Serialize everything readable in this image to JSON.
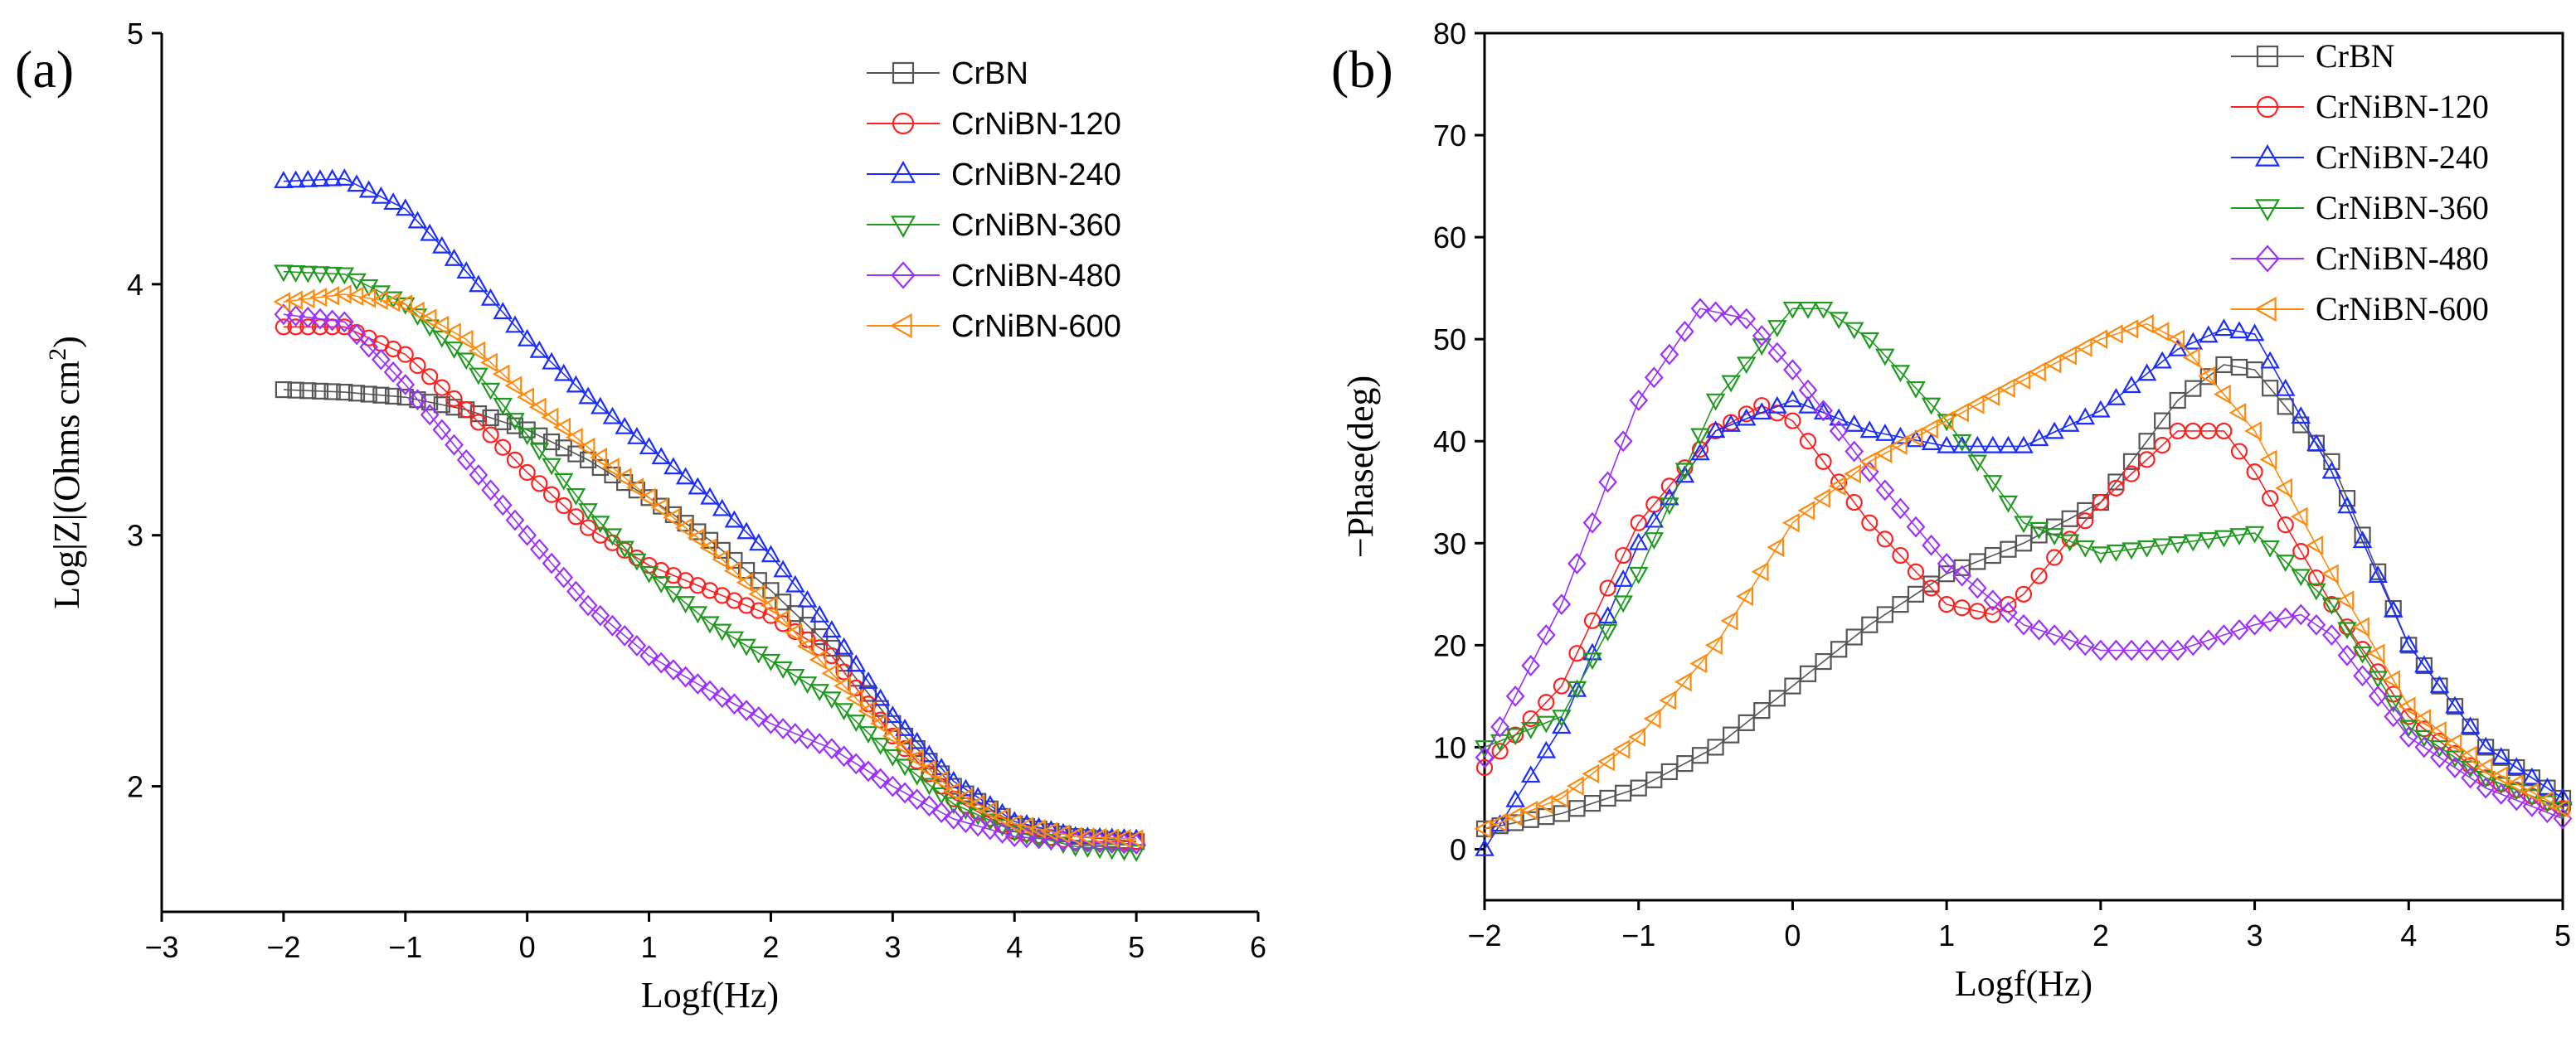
{
  "chart_data": [
    {
      "type": "scatter",
      "panel_label": "(a)",
      "xlabel": "Logf(Hz)",
      "ylabel": "Log|Z|(Ohms cm",
      "ylabel_sup": "2",
      "ylabel_close": ")",
      "xlim": [
        -3,
        6
      ],
      "ylim": [
        1.5,
        5
      ],
      "xticks": [
        -3,
        -2,
        -1,
        0,
        1,
        2,
        3,
        4,
        5,
        6
      ],
      "xtick_labels": [
        "−3",
        "−2",
        "−1",
        "0",
        "1",
        "2",
        "3",
        "4",
        "5",
        "6"
      ],
      "yticks": [
        2,
        3,
        4,
        5
      ],
      "ytick_labels": [
        "2",
        "3",
        "4",
        "5"
      ],
      "legend_position": "top-right",
      "series": [
        {
          "name": "CrBN",
          "color": "#555555",
          "marker": "square",
          "x": [
            -2.0,
            -1.5,
            -1.0,
            -0.5,
            0.0,
            0.5,
            1.0,
            1.5,
            2.0,
            2.5,
            3.0,
            3.5,
            4.0,
            4.5,
            5.0
          ],
          "y": [
            3.58,
            3.57,
            3.55,
            3.5,
            3.42,
            3.3,
            3.15,
            2.98,
            2.78,
            2.55,
            2.25,
            2.0,
            1.85,
            1.8,
            1.78
          ]
        },
        {
          "name": "CrNiBN-120",
          "color": "#ff2020",
          "marker": "circle",
          "x": [
            -2.0,
            -1.5,
            -1.0,
            -0.5,
            0.0,
            0.5,
            1.0,
            1.5,
            2.0,
            2.5,
            3.0,
            3.5,
            4.0,
            4.5,
            5.0
          ],
          "y": [
            3.83,
            3.83,
            3.72,
            3.5,
            3.25,
            3.03,
            2.88,
            2.78,
            2.68,
            2.52,
            2.2,
            1.95,
            1.82,
            1.78,
            1.78
          ]
        },
        {
          "name": "CrNiBN-240",
          "color": "#1a2cff",
          "marker": "triangle-up",
          "x": [
            -2.0,
            -1.5,
            -1.0,
            -0.5,
            0.0,
            0.5,
            1.0,
            1.5,
            2.0,
            2.5,
            3.0,
            3.5,
            4.0,
            4.5,
            5.0
          ],
          "y": [
            4.41,
            4.42,
            4.3,
            4.05,
            3.78,
            3.55,
            3.35,
            3.15,
            2.92,
            2.62,
            2.28,
            2.02,
            1.86,
            1.8,
            1.79
          ]
        },
        {
          "name": "CrNiBN-360",
          "color": "#1f9a1f",
          "marker": "triangle-down",
          "x": [
            -2.0,
            -1.5,
            -1.0,
            -0.5,
            0.0,
            0.5,
            1.0,
            1.5,
            2.0,
            2.5,
            3.0,
            3.5,
            4.0,
            4.5,
            5.0
          ],
          "y": [
            4.05,
            4.04,
            3.92,
            3.7,
            3.4,
            3.1,
            2.85,
            2.65,
            2.5,
            2.35,
            2.12,
            1.93,
            1.82,
            1.76,
            1.74
          ]
        },
        {
          "name": "CrNiBN-480",
          "color": "#9b30ff",
          "marker": "diamond",
          "x": [
            -2.0,
            -1.5,
            -1.0,
            -0.5,
            0.0,
            0.5,
            1.0,
            1.5,
            2.0,
            2.5,
            3.0,
            3.5,
            4.0,
            4.5,
            5.0
          ],
          "y": [
            3.88,
            3.85,
            3.6,
            3.3,
            3.0,
            2.72,
            2.52,
            2.38,
            2.25,
            2.15,
            2.0,
            1.87,
            1.8,
            1.78,
            1.77
          ]
        },
        {
          "name": "CrNiBN-600",
          "color": "#ff8a10",
          "marker": "triangle-left",
          "x": [
            -2.0,
            -1.5,
            -1.0,
            -0.5,
            0.0,
            0.5,
            1.0,
            1.5,
            2.0,
            2.5,
            3.0,
            3.5,
            4.0,
            4.5,
            5.0
          ],
          "y": [
            3.93,
            3.96,
            3.92,
            3.78,
            3.55,
            3.35,
            3.15,
            2.95,
            2.72,
            2.45,
            2.2,
            1.98,
            1.85,
            1.8,
            1.79
          ]
        }
      ]
    },
    {
      "type": "scatter",
      "panel_label": "(b)",
      "xlabel": "Logf(Hz)",
      "ylabel": "−Phase(deg)",
      "xlim": [
        -2,
        5
      ],
      "ylim": [
        -5,
        80
      ],
      "xticks": [
        -2,
        -1,
        0,
        1,
        2,
        3,
        4,
        5
      ],
      "xtick_labels": [
        "−2",
        "−1",
        "0",
        "1",
        "2",
        "3",
        "4",
        "5"
      ],
      "yticks": [
        0,
        10,
        20,
        30,
        40,
        50,
        60,
        70,
        80
      ],
      "ytick_labels": [
        "0",
        "10",
        "20",
        "30",
        "40",
        "50",
        "60",
        "70",
        "80"
      ],
      "legend_position": "top-right",
      "series": [
        {
          "name": "CrBN",
          "color": "#555555",
          "marker": "square",
          "x": [
            -2.0,
            -1.5,
            -1.0,
            -0.5,
            0.0,
            0.5,
            1.0,
            1.5,
            2.0,
            2.5,
            2.8,
            3.0,
            3.5,
            4.0,
            4.5,
            5.0
          ],
          "y": [
            2,
            3.5,
            6,
            10,
            16,
            22,
            27,
            30,
            34,
            44,
            47.5,
            47,
            38,
            20,
            10,
            5
          ]
        },
        {
          "name": "CrNiBN-120",
          "color": "#ff2020",
          "marker": "circle",
          "x": [
            -2.0,
            -1.5,
            -1.0,
            -0.5,
            -0.2,
            0.0,
            0.5,
            1.0,
            1.3,
            1.5,
            2.0,
            2.5,
            2.8,
            3.0,
            3.5,
            4.0,
            4.5,
            5.0
          ],
          "y": [
            8,
            16,
            32,
            41,
            43.5,
            42,
            32,
            24,
            23,
            25,
            34,
            41,
            41,
            37,
            24,
            13,
            7,
            4
          ]
        },
        {
          "name": "CrNiBN-240",
          "color": "#1a2cff",
          "marker": "triangle-up",
          "x": [
            -2.0,
            -1.5,
            -1.0,
            -0.5,
            0.0,
            0.5,
            1.0,
            1.5,
            2.0,
            2.5,
            2.8,
            3.0,
            3.5,
            4.0,
            4.5,
            5.0
          ],
          "y": [
            0,
            12,
            30,
            41,
            44,
            41,
            39.5,
            39.5,
            43,
            49,
            51,
            50.5,
            37,
            20,
            10,
            5
          ]
        },
        {
          "name": "CrNiBN-360",
          "color": "#1f9a1f",
          "marker": "triangle-down",
          "x": [
            -2.0,
            -1.5,
            -1.0,
            -0.5,
            0.0,
            0.2,
            0.5,
            1.0,
            1.5,
            2.0,
            2.5,
            3.0,
            3.5,
            4.0,
            4.5,
            5.0
          ],
          "y": [
            10,
            13,
            27,
            44,
            53,
            53,
            50,
            42,
            32,
            29,
            30,
            31,
            24,
            12,
            7,
            4
          ]
        },
        {
          "name": "CrNiBN-480",
          "color": "#9b30ff",
          "marker": "diamond",
          "x": [
            -2.0,
            -1.5,
            -1.0,
            -0.6,
            -0.3,
            0.0,
            0.5,
            1.0,
            1.5,
            2.0,
            2.5,
            3.0,
            3.3,
            3.5,
            4.0,
            4.5,
            5.0
          ],
          "y": [
            9,
            24,
            44,
            53,
            52,
            47,
            37,
            28,
            22,
            19.5,
            19.5,
            22,
            23,
            21,
            11,
            6,
            3
          ]
        },
        {
          "name": "CrNiBN-600",
          "color": "#ff8a10",
          "marker": "triangle-left",
          "x": [
            -2.0,
            -1.5,
            -1.0,
            -0.5,
            0.0,
            0.5,
            1.0,
            1.5,
            2.0,
            2.3,
            2.5,
            3.0,
            3.5,
            4.0,
            4.5,
            5.0
          ],
          "y": [
            2,
            5,
            11,
            20,
            32,
            38,
            42,
            46,
            50,
            51.5,
            50,
            41,
            27,
            14,
            8,
            4
          ]
        }
      ]
    }
  ]
}
